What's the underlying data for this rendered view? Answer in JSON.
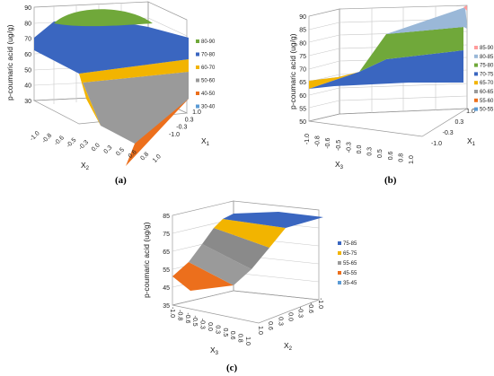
{
  "chart_data": [
    {
      "panel": "(a)",
      "type": "surface",
      "xlabel": "X2",
      "ylabel": "X1",
      "zlabel": "p-coumaric acid (ug/g)",
      "xticks": [
        "-1.0",
        "-0.8",
        "-0.6",
        "-0.5",
        "-0.3",
        "0.0",
        "0.3",
        "0.5",
        "0.6",
        "0.8",
        "1.0"
      ],
      "yticks": [
        "1.0",
        "0.3",
        "-0.3",
        "-1.0"
      ],
      "zticks": [
        "30",
        "40",
        "50",
        "60",
        "70",
        "80",
        "90"
      ],
      "zlim": [
        30,
        90
      ],
      "bands": [
        {
          "label": "80-90",
          "color": "#70a83a"
        },
        {
          "label": "70-80",
          "color": "#3a66c0"
        },
        {
          "label": "60-70",
          "color": "#f2b400"
        },
        {
          "label": "50-60",
          "color": "#9a9a9a"
        },
        {
          "label": "40-50",
          "color": "#ec6f1c"
        },
        {
          "label": "30-40",
          "color": "#5b9bd5"
        }
      ],
      "surface_profile": {
        "x": [
          -1.0,
          0.0,
          0.3,
          1.0
        ],
        "z": [
          79,
          86,
          84,
          38
        ]
      }
    },
    {
      "panel": "(b)",
      "type": "surface",
      "xlabel": "X3",
      "ylabel": "X1",
      "zlabel": "p-coumaric acid (ug/g)",
      "xticks": [
        "-1.0",
        "-0.8",
        "-0.6",
        "-0.5",
        "-0.3",
        "0.0",
        "0.3",
        "0.5",
        "0.6",
        "0.8",
        "1.0"
      ],
      "yticks": [
        "1.0",
        "0.3",
        "-0.3",
        "-1.0"
      ],
      "zticks": [
        "50",
        "55",
        "60",
        "65",
        "70",
        "75",
        "80",
        "85",
        "90"
      ],
      "zlim": [
        50,
        90
      ],
      "bands": [
        {
          "label": "85-90",
          "color": "#ff9c9c"
        },
        {
          "label": "80-85",
          "color": "#9ab8d8"
        },
        {
          "label": "75-80",
          "color": "#70a83a"
        },
        {
          "label": "70-75",
          "color": "#3a66c0"
        },
        {
          "label": "65-70",
          "color": "#f2b400"
        },
        {
          "label": "60-65",
          "color": "#9a9a9a"
        },
        {
          "label": "55-60",
          "color": "#ec6f1c"
        },
        {
          "label": "50-55",
          "color": "#5b9bd5"
        }
      ],
      "surface_profile": {
        "x": [
          -1.0,
          1.0
        ],
        "z_low": [
          67,
          71
        ],
        "z_high": [
          80,
          90
        ]
      }
    },
    {
      "panel": "(c)",
      "type": "surface",
      "xlabel": "X2",
      "ylabel": "X3",
      "zlabel": "p-coumaric acid (ug/g)",
      "xticks": [
        "1.0",
        "0.6",
        "0.3",
        "0.0",
        "-0.3",
        "-0.6",
        "-1.0"
      ],
      "yticks": [
        "-1.0",
        "-0.8",
        "-0.6",
        "-0.5",
        "-0.3",
        "0.0",
        "0.3",
        "0.5",
        "0.6",
        "0.8",
        "1.0"
      ],
      "zticks": [
        "35",
        "45",
        "55",
        "65",
        "75",
        "85"
      ],
      "zlim": [
        35,
        85
      ],
      "bands": [
        {
          "label": "75-85",
          "color": "#3a66c0"
        },
        {
          "label": "65-75",
          "color": "#f2b400"
        },
        {
          "label": "55-65",
          "color": "#9a9a9a"
        },
        {
          "label": "45-55",
          "color": "#ec6f1c"
        },
        {
          "label": "35-45",
          "color": "#5b9bd5"
        }
      ],
      "surface_profile": {
        "y": [
          -1.0,
          0.0,
          1.0
        ],
        "z": [
          44,
          70,
          82
        ]
      }
    }
  ]
}
